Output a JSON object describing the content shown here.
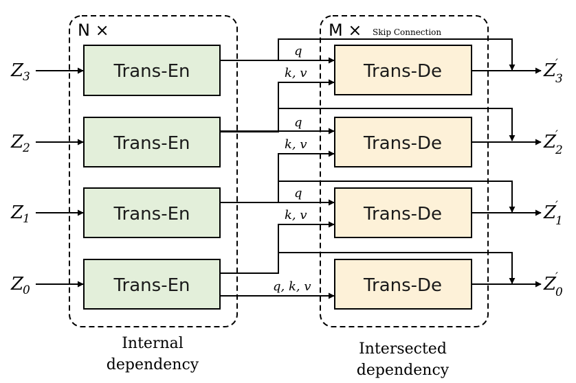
{
  "encoder": {
    "repeat_label": "N ×",
    "block_label": "Trans-En",
    "caption_line1": "Internal",
    "caption_line2": "dependency"
  },
  "decoder": {
    "repeat_label": "M ×",
    "skip_label": "Skip Connection",
    "block_label": "Trans-De",
    "caption_line1": "Intersected",
    "caption_line2": "dependency"
  },
  "inputs": [
    {
      "base": "Z",
      "sub": "3"
    },
    {
      "base": "Z",
      "sub": "2"
    },
    {
      "base": "Z",
      "sub": "1"
    },
    {
      "base": "Z",
      "sub": "0"
    }
  ],
  "outputs": [
    {
      "base": "Z",
      "sub": "3",
      "prime": "′"
    },
    {
      "base": "Z",
      "sub": "2",
      "prime": "′"
    },
    {
      "base": "Z",
      "sub": "1",
      "prime": "′"
    },
    {
      "base": "Z",
      "sub": "0",
      "prime": "′"
    }
  ],
  "connections": {
    "query": "q",
    "key_value": "k, v",
    "bottom": "q, k, v"
  },
  "colors": {
    "encoder_fill": "#e3efda",
    "decoder_fill": "#fdf1d8",
    "stroke": "#000000"
  }
}
